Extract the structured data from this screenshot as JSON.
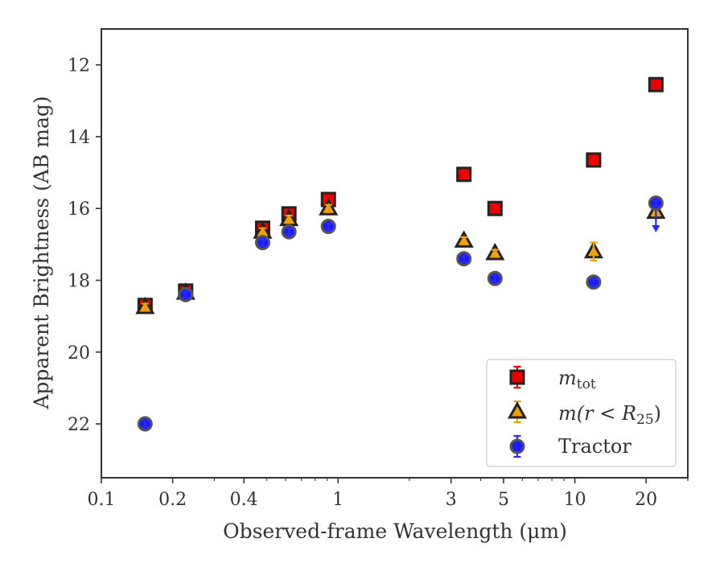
{
  "chart_data": {
    "type": "scatter",
    "xlabel": "Observed-frame Wavelength (μm)",
    "ylabel": "Apparent Brightness (AB mag)",
    "xscale": "log",
    "xlim": [
      0.1,
      30
    ],
    "ylim": [
      23.5,
      11
    ],
    "y_inverted": true,
    "grid": false,
    "legend_position": "lower-right",
    "x_ticks": [
      {
        "value": 0.1,
        "label": "0.1"
      },
      {
        "value": 0.2,
        "label": "0.2"
      },
      {
        "value": 0.4,
        "label": "0.4"
      },
      {
        "value": 1,
        "label": "1"
      },
      {
        "value": 3,
        "label": "3"
      },
      {
        "value": 5,
        "label": "5"
      },
      {
        "value": 10,
        "label": "10"
      },
      {
        "value": 20,
        "label": "20"
      }
    ],
    "y_ticks": [
      {
        "value": 12,
        "label": "12"
      },
      {
        "value": 14,
        "label": "14"
      },
      {
        "value": 16,
        "label": "16"
      },
      {
        "value": 18,
        "label": "18"
      },
      {
        "value": 20,
        "label": "20"
      },
      {
        "value": 22,
        "label": "22"
      }
    ],
    "series": [
      {
        "name": "m_tot",
        "legend_main": "m",
        "legend_sub": "tot",
        "marker": "square",
        "face_color": "#ee0000",
        "edge_color": "#222222",
        "errorbar_color": "#ee0000",
        "points": [
          {
            "x": 0.153,
            "y": 18.7,
            "err": 0.15
          },
          {
            "x": 0.227,
            "y": 18.3,
            "err": 0.1
          },
          {
            "x": 0.48,
            "y": 16.55,
            "err": 0.1
          },
          {
            "x": 0.62,
            "y": 16.15,
            "err": 0.1
          },
          {
            "x": 0.91,
            "y": 15.75,
            "err": 0.1
          },
          {
            "x": 3.4,
            "y": 15.05,
            "err": 0.05
          },
          {
            "x": 4.6,
            "y": 16.0,
            "err": 0.05
          },
          {
            "x": 12.0,
            "y": 14.65,
            "err": 0.05
          },
          {
            "x": 22.0,
            "y": 12.55,
            "err": 0.05
          }
        ]
      },
      {
        "name": "m(r < R_25)",
        "legend_main": "m(r < R",
        "legend_sub": "25",
        "legend_tail": ")",
        "marker": "triangle",
        "face_color": "#f0a000",
        "edge_color": "#222222",
        "errorbar_color": "#f0a000",
        "points": [
          {
            "x": 0.153,
            "y": 18.75,
            "err": 0.1
          },
          {
            "x": 0.227,
            "y": 18.35,
            "err": 0.1
          },
          {
            "x": 0.48,
            "y": 16.65,
            "err": 0.1
          },
          {
            "x": 0.62,
            "y": 16.3,
            "err": 0.1
          },
          {
            "x": 0.91,
            "y": 16.0,
            "err": 0.1
          },
          {
            "x": 3.4,
            "y": 16.9,
            "err": 0.1
          },
          {
            "x": 4.6,
            "y": 17.25,
            "err": 0.1
          },
          {
            "x": 12.0,
            "y": 17.2,
            "err": 0.25
          },
          {
            "x": 22.0,
            "y": 16.1,
            "err": 0.1
          }
        ]
      },
      {
        "name": "Tractor",
        "legend_main": "Tractor",
        "marker": "circle",
        "face_color": "#1a1aff",
        "edge_color": "#555555",
        "errorbar_color": "#2a2aff",
        "points": [
          {
            "x": 0.153,
            "y": 22.0,
            "err": 0.05
          },
          {
            "x": 0.227,
            "y": 18.4,
            "err": 0.05
          },
          {
            "x": 0.48,
            "y": 16.95,
            "err": 0.05
          },
          {
            "x": 0.62,
            "y": 16.65,
            "err": 0.05
          },
          {
            "x": 0.91,
            "y": 16.5,
            "err": 0.05
          },
          {
            "x": 3.4,
            "y": 17.4,
            "err": 0.05
          },
          {
            "x": 4.6,
            "y": 17.95,
            "err": 0.05
          },
          {
            "x": 12.0,
            "y": 18.05,
            "err": 0.05
          },
          {
            "x": 22.0,
            "y": 15.85,
            "err": 0.05,
            "upper_limit_to": 16.6
          }
        ]
      }
    ]
  }
}
